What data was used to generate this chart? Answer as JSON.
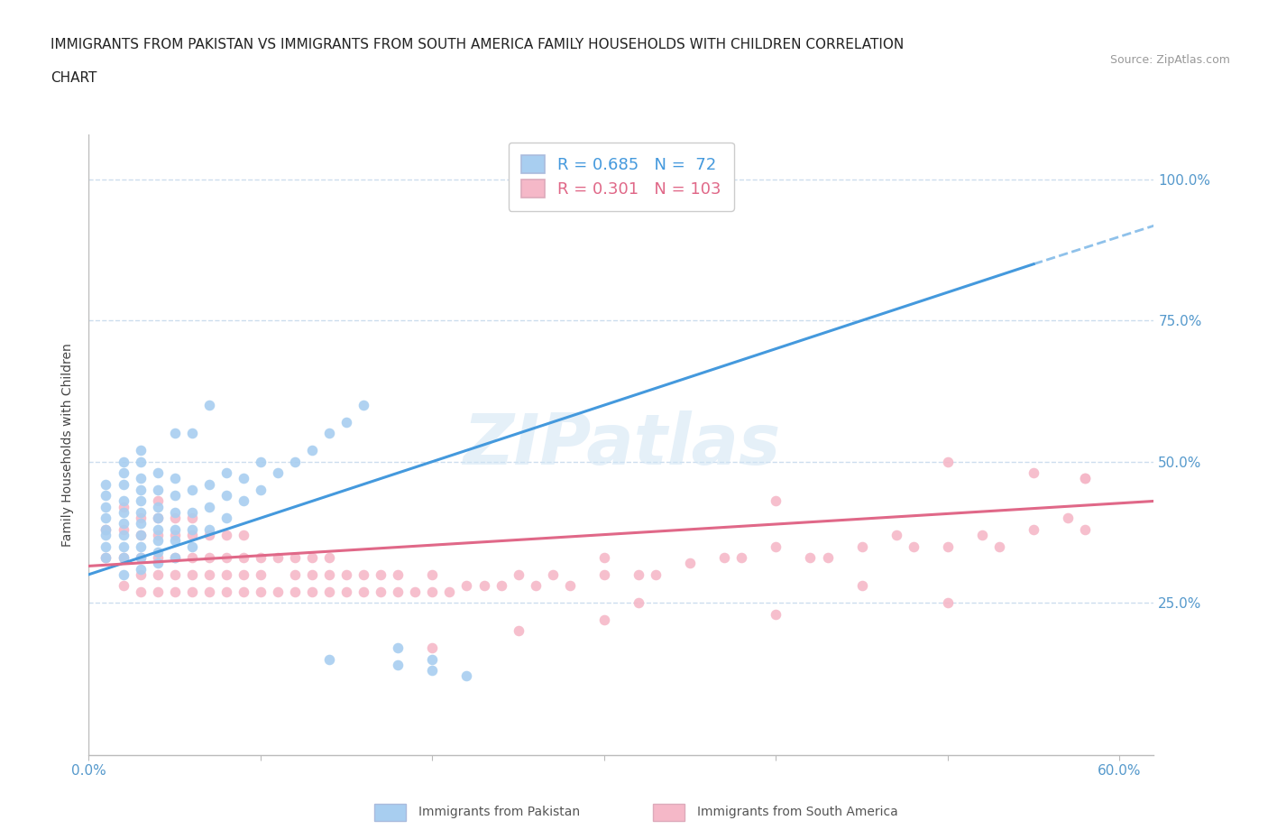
{
  "title_line1": "IMMIGRANTS FROM PAKISTAN VS IMMIGRANTS FROM SOUTH AMERICA FAMILY HOUSEHOLDS WITH CHILDREN CORRELATION",
  "title_line2": "CHART",
  "source": "Source: ZipAtlas.com",
  "ylabel": "Family Households with Children",
  "xlim": [
    0.0,
    0.62
  ],
  "ylim": [
    -0.02,
    1.08
  ],
  "yticks": [
    0.25,
    0.5,
    0.75,
    1.0
  ],
  "ytick_labels": [
    "25.0%",
    "50.0%",
    "75.0%",
    "100.0%"
  ],
  "xticks": [
    0.0,
    0.1,
    0.2,
    0.3,
    0.4,
    0.5,
    0.6
  ],
  "xtick_labels": [
    "0.0%",
    "",
    "",
    "",
    "",
    "",
    "60.0%"
  ],
  "blue_R": 0.685,
  "blue_N": 72,
  "pink_R": 0.301,
  "pink_N": 103,
  "blue_color": "#a8cef0",
  "pink_color": "#f5b8c8",
  "blue_line_color": "#4499dd",
  "pink_line_color": "#e06888",
  "watermark_text": "ZIPatlas",
  "background_color": "#ffffff",
  "grid_color": "#ccddee",
  "axis_label_color": "#5599cc",
  "title_fontsize": 11,
  "tick_fontsize": 11,
  "blue_scatter_x": [
    0.01,
    0.01,
    0.01,
    0.01,
    0.01,
    0.01,
    0.01,
    0.01,
    0.02,
    0.02,
    0.02,
    0.02,
    0.02,
    0.02,
    0.02,
    0.02,
    0.02,
    0.02,
    0.03,
    0.03,
    0.03,
    0.03,
    0.03,
    0.03,
    0.03,
    0.03,
    0.03,
    0.03,
    0.03,
    0.04,
    0.04,
    0.04,
    0.04,
    0.04,
    0.04,
    0.04,
    0.04,
    0.05,
    0.05,
    0.05,
    0.05,
    0.05,
    0.05,
    0.06,
    0.06,
    0.06,
    0.06,
    0.07,
    0.07,
    0.07,
    0.08,
    0.08,
    0.08,
    0.09,
    0.09,
    0.1,
    0.1,
    0.11,
    0.12,
    0.13,
    0.14,
    0.15,
    0.16,
    0.18,
    0.2,
    0.22,
    0.05,
    0.06,
    0.07,
    0.14,
    0.18,
    0.2
  ],
  "blue_scatter_y": [
    0.33,
    0.35,
    0.37,
    0.38,
    0.4,
    0.42,
    0.44,
    0.46,
    0.3,
    0.33,
    0.35,
    0.37,
    0.39,
    0.41,
    0.43,
    0.46,
    0.48,
    0.5,
    0.31,
    0.33,
    0.35,
    0.37,
    0.39,
    0.41,
    0.43,
    0.45,
    0.47,
    0.5,
    0.52,
    0.32,
    0.34,
    0.36,
    0.38,
    0.4,
    0.42,
    0.45,
    0.48,
    0.33,
    0.36,
    0.38,
    0.41,
    0.44,
    0.47,
    0.35,
    0.38,
    0.41,
    0.45,
    0.38,
    0.42,
    0.46,
    0.4,
    0.44,
    0.48,
    0.43,
    0.47,
    0.45,
    0.5,
    0.48,
    0.5,
    0.52,
    0.55,
    0.57,
    0.6,
    0.14,
    0.15,
    0.12,
    0.55,
    0.55,
    0.6,
    0.15,
    0.17,
    0.13
  ],
  "pink_scatter_x": [
    0.01,
    0.01,
    0.02,
    0.02,
    0.02,
    0.02,
    0.03,
    0.03,
    0.03,
    0.03,
    0.03,
    0.04,
    0.04,
    0.04,
    0.04,
    0.04,
    0.04,
    0.05,
    0.05,
    0.05,
    0.05,
    0.05,
    0.06,
    0.06,
    0.06,
    0.06,
    0.06,
    0.07,
    0.07,
    0.07,
    0.07,
    0.08,
    0.08,
    0.08,
    0.08,
    0.09,
    0.09,
    0.09,
    0.09,
    0.1,
    0.1,
    0.1,
    0.11,
    0.11,
    0.12,
    0.12,
    0.12,
    0.13,
    0.13,
    0.13,
    0.14,
    0.14,
    0.14,
    0.15,
    0.15,
    0.16,
    0.16,
    0.17,
    0.17,
    0.18,
    0.18,
    0.19,
    0.2,
    0.2,
    0.21,
    0.22,
    0.23,
    0.24,
    0.25,
    0.26,
    0.27,
    0.28,
    0.3,
    0.3,
    0.32,
    0.33,
    0.35,
    0.37,
    0.38,
    0.4,
    0.42,
    0.43,
    0.45,
    0.47,
    0.48,
    0.5,
    0.52,
    0.53,
    0.55,
    0.57,
    0.58,
    0.2,
    0.25,
    0.3,
    0.32,
    0.4,
    0.45,
    0.5,
    0.55,
    0.58,
    0.4,
    0.5,
    0.58
  ],
  "pink_scatter_y": [
    0.33,
    0.38,
    0.28,
    0.33,
    0.38,
    0.42,
    0.27,
    0.3,
    0.33,
    0.37,
    0.4,
    0.27,
    0.3,
    0.33,
    0.37,
    0.4,
    0.43,
    0.27,
    0.3,
    0.33,
    0.37,
    0.4,
    0.27,
    0.3,
    0.33,
    0.37,
    0.4,
    0.27,
    0.3,
    0.33,
    0.37,
    0.27,
    0.3,
    0.33,
    0.37,
    0.27,
    0.3,
    0.33,
    0.37,
    0.27,
    0.3,
    0.33,
    0.27,
    0.33,
    0.27,
    0.3,
    0.33,
    0.27,
    0.3,
    0.33,
    0.27,
    0.3,
    0.33,
    0.27,
    0.3,
    0.27,
    0.3,
    0.27,
    0.3,
    0.27,
    0.3,
    0.27,
    0.27,
    0.3,
    0.27,
    0.28,
    0.28,
    0.28,
    0.3,
    0.28,
    0.3,
    0.28,
    0.3,
    0.33,
    0.3,
    0.3,
    0.32,
    0.33,
    0.33,
    0.35,
    0.33,
    0.33,
    0.35,
    0.37,
    0.35,
    0.35,
    0.37,
    0.35,
    0.38,
    0.4,
    0.38,
    0.17,
    0.2,
    0.22,
    0.25,
    0.23,
    0.28,
    0.25,
    0.48,
    0.47,
    0.43,
    0.5,
    0.47
  ]
}
